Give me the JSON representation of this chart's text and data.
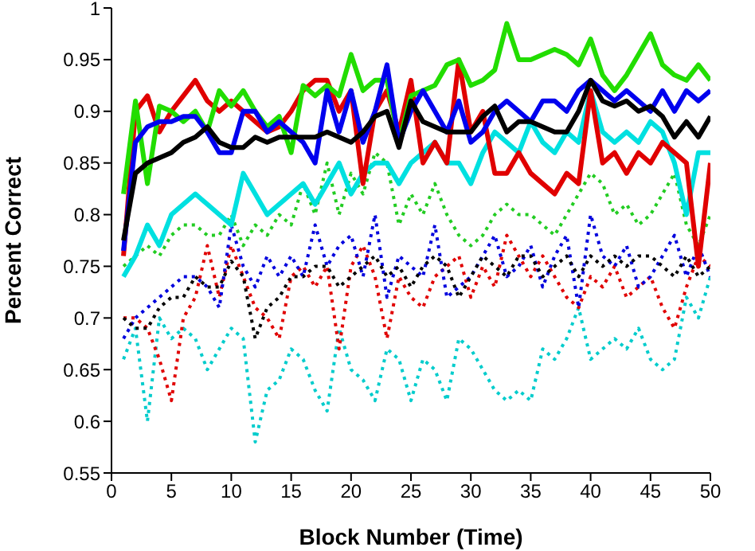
{
  "chart_data": {
    "type": "line",
    "xlabel": "Block Number (Time)",
    "ylabel": "Percent Correct",
    "x": [
      1,
      2,
      3,
      4,
      5,
      6,
      7,
      8,
      9,
      10,
      11,
      12,
      13,
      14,
      15,
      16,
      17,
      18,
      19,
      20,
      21,
      22,
      23,
      24,
      25,
      26,
      27,
      28,
      29,
      30,
      31,
      32,
      33,
      34,
      35,
      36,
      37,
      38,
      39,
      40,
      41,
      42,
      43,
      44,
      45,
      46,
      47,
      48,
      49,
      50
    ],
    "xlim": [
      0,
      50
    ],
    "xticks": [
      0,
      5,
      10,
      15,
      20,
      25,
      30,
      35,
      40,
      45,
      50
    ],
    "ylim": [
      0.55,
      1
    ],
    "yticks": [
      0.55,
      0.6,
      0.65,
      0.7,
      0.75,
      0.8,
      0.85,
      0.9,
      0.95,
      1
    ],
    "grid": false,
    "legend": false,
    "marker": "none",
    "series": [
      {
        "color": "#00cccc",
        "line_style": "dotted",
        "values": [
          0.66,
          0.69,
          0.6,
          0.7,
          0.68,
          0.69,
          0.68,
          0.65,
          0.67,
          0.69,
          0.68,
          0.58,
          0.63,
          0.64,
          0.67,
          0.66,
          0.63,
          0.61,
          0.69,
          0.65,
          0.64,
          0.62,
          0.67,
          0.66,
          0.62,
          0.66,
          0.65,
          0.62,
          0.68,
          0.67,
          0.65,
          0.63,
          0.62,
          0.63,
          0.62,
          0.67,
          0.66,
          0.68,
          0.71,
          0.66,
          0.67,
          0.68,
          0.67,
          0.69,
          0.66,
          0.65,
          0.66,
          0.72,
          0.7,
          0.74
        ]
      },
      {
        "color": "#e00000",
        "line_style": "dotted",
        "values": [
          0.7,
          0.7,
          0.69,
          0.66,
          0.62,
          0.7,
          0.72,
          0.77,
          0.72,
          0.77,
          0.74,
          0.71,
          0.7,
          0.68,
          0.74,
          0.75,
          0.73,
          0.75,
          0.67,
          0.75,
          0.77,
          0.74,
          0.68,
          0.74,
          0.72,
          0.71,
          0.74,
          0.75,
          0.76,
          0.72,
          0.75,
          0.73,
          0.78,
          0.76,
          0.74,
          0.76,
          0.74,
          0.72,
          0.71,
          0.74,
          0.73,
          0.75,
          0.72,
          0.73,
          0.74,
          0.71,
          0.69,
          0.73,
          0.76,
          0.75
        ]
      },
      {
        "color": "#0000dd",
        "line_style": "dotted",
        "values": [
          0.68,
          0.7,
          0.71,
          0.72,
          0.73,
          0.74,
          0.74,
          0.73,
          0.71,
          0.79,
          0.75,
          0.73,
          0.76,
          0.74,
          0.76,
          0.74,
          0.79,
          0.75,
          0.77,
          0.78,
          0.74,
          0.8,
          0.72,
          0.76,
          0.75,
          0.74,
          0.79,
          0.72,
          0.73,
          0.74,
          0.76,
          0.78,
          0.74,
          0.75,
          0.77,
          0.73,
          0.76,
          0.78,
          0.71,
          0.8,
          0.76,
          0.75,
          0.77,
          0.73,
          0.74,
          0.76,
          0.78,
          0.74,
          0.77,
          0.74
        ]
      },
      {
        "color": "#000000",
        "line_style": "dotted",
        "values": [
          0.7,
          0.69,
          0.69,
          0.71,
          0.72,
          0.72,
          0.74,
          0.73,
          0.73,
          0.755,
          0.74,
          0.68,
          0.71,
          0.72,
          0.74,
          0.74,
          0.75,
          0.75,
          0.73,
          0.74,
          0.75,
          0.76,
          0.74,
          0.75,
          0.73,
          0.75,
          0.76,
          0.75,
          0.72,
          0.74,
          0.76,
          0.75,
          0.74,
          0.76,
          0.76,
          0.74,
          0.75,
          0.76,
          0.74,
          0.76,
          0.75,
          0.76,
          0.75,
          0.76,
          0.76,
          0.75,
          0.74,
          0.76,
          0.74,
          0.75
        ]
      },
      {
        "color": "#22cc22",
        "line_style": "dotted",
        "values": [
          0.75,
          0.76,
          0.77,
          0.76,
          0.78,
          0.79,
          0.79,
          0.78,
          0.78,
          0.8,
          0.77,
          0.79,
          0.78,
          0.8,
          0.79,
          0.83,
          0.8,
          0.85,
          0.8,
          0.84,
          0.82,
          0.86,
          0.85,
          0.79,
          0.82,
          0.8,
          0.83,
          0.8,
          0.78,
          0.77,
          0.78,
          0.8,
          0.81,
          0.8,
          0.8,
          0.79,
          0.78,
          0.8,
          0.82,
          0.84,
          0.83,
          0.8,
          0.81,
          0.79,
          0.8,
          0.82,
          0.84,
          0.79,
          0.77,
          0.8
        ]
      },
      {
        "color": "#00e0e0",
        "line_style": "solid",
        "values": [
          0.74,
          0.76,
          0.79,
          0.77,
          0.8,
          0.81,
          0.82,
          0.81,
          0.8,
          0.79,
          0.84,
          0.82,
          0.8,
          0.81,
          0.82,
          0.83,
          0.81,
          0.83,
          0.85,
          0.82,
          0.84,
          0.85,
          0.85,
          0.83,
          0.85,
          0.86,
          0.87,
          0.85,
          0.85,
          0.83,
          0.86,
          0.88,
          0.87,
          0.86,
          0.89,
          0.87,
          0.86,
          0.88,
          0.87,
          0.92,
          0.88,
          0.87,
          0.88,
          0.87,
          0.89,
          0.88,
          0.85,
          0.8,
          0.86,
          0.86
        ]
      },
      {
        "color": "#e00000",
        "line_style": "solid",
        "values": [
          0.76,
          0.9,
          0.915,
          0.88,
          0.9,
          0.915,
          0.93,
          0.91,
          0.9,
          0.91,
          0.9,
          0.89,
          0.88,
          0.885,
          0.9,
          0.92,
          0.93,
          0.93,
          0.9,
          0.92,
          0.83,
          0.9,
          0.92,
          0.88,
          0.93,
          0.85,
          0.87,
          0.85,
          0.95,
          0.88,
          0.9,
          0.84,
          0.84,
          0.86,
          0.84,
          0.83,
          0.82,
          0.84,
          0.83,
          0.92,
          0.85,
          0.86,
          0.84,
          0.86,
          0.85,
          0.87,
          0.86,
          0.85,
          0.75,
          0.85
        ]
      },
      {
        "color": "#22dd00",
        "line_style": "solid",
        "values": [
          0.82,
          0.91,
          0.83,
          0.905,
          0.9,
          0.89,
          0.9,
          0.88,
          0.92,
          0.905,
          0.92,
          0.9,
          0.885,
          0.895,
          0.86,
          0.925,
          0.915,
          0.925,
          0.915,
          0.955,
          0.92,
          0.93,
          0.93,
          0.87,
          0.915,
          0.92,
          0.925,
          0.945,
          0.95,
          0.925,
          0.93,
          0.94,
          0.985,
          0.95,
          0.95,
          0.955,
          0.96,
          0.955,
          0.945,
          0.97,
          0.935,
          0.92,
          0.935,
          0.955,
          0.975,
          0.945,
          0.935,
          0.93,
          0.945,
          0.93
        ]
      },
      {
        "color": "#0000ee",
        "line_style": "solid",
        "values": [
          0.765,
          0.87,
          0.885,
          0.89,
          0.89,
          0.895,
          0.895,
          0.88,
          0.86,
          0.86,
          0.9,
          0.9,
          0.88,
          0.89,
          0.88,
          0.87,
          0.85,
          0.92,
          0.88,
          0.92,
          0.87,
          0.9,
          0.945,
          0.87,
          0.9,
          0.92,
          0.9,
          0.88,
          0.91,
          0.87,
          0.88,
          0.9,
          0.91,
          0.9,
          0.89,
          0.91,
          0.91,
          0.9,
          0.92,
          0.93,
          0.92,
          0.91,
          0.92,
          0.91,
          0.9,
          0.92,
          0.9,
          0.92,
          0.91,
          0.92
        ]
      },
      {
        "color": "#000000",
        "line_style": "solid",
        "values": [
          0.775,
          0.84,
          0.85,
          0.855,
          0.86,
          0.87,
          0.875,
          0.885,
          0.87,
          0.865,
          0.865,
          0.875,
          0.87,
          0.875,
          0.875,
          0.875,
          0.875,
          0.88,
          0.875,
          0.87,
          0.88,
          0.895,
          0.9,
          0.865,
          0.91,
          0.89,
          0.885,
          0.88,
          0.88,
          0.88,
          0.895,
          0.905,
          0.88,
          0.89,
          0.89,
          0.885,
          0.88,
          0.88,
          0.9,
          0.93,
          0.91,
          0.905,
          0.91,
          0.9,
          0.905,
          0.895,
          0.875,
          0.89,
          0.875,
          0.895
        ]
      }
    ]
  }
}
